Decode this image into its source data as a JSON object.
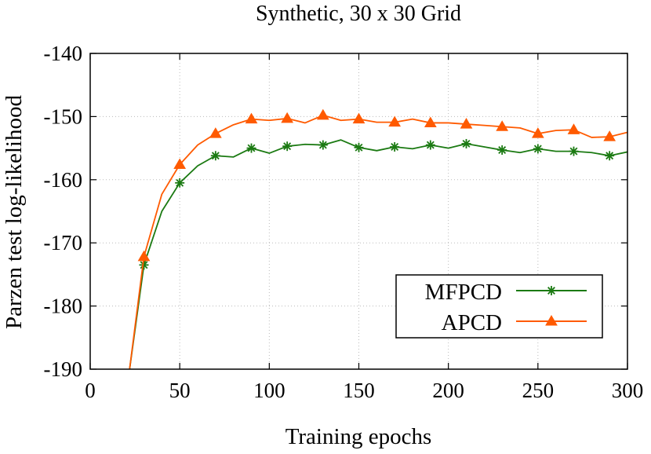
{
  "chart_data": {
    "type": "line",
    "title": "Synthetic, 30 x 30 Grid",
    "xlabel": "Training epochs",
    "ylabel": "Parzen test log-likelihood",
    "xlim": [
      0,
      300
    ],
    "ylim": [
      -190,
      -140
    ],
    "xticks": [
      0,
      50,
      100,
      150,
      200,
      250,
      300
    ],
    "yticks": [
      -190,
      -180,
      -170,
      -160,
      -150,
      -140
    ],
    "grid": true,
    "legend_position": "lower-right",
    "series": [
      {
        "name": "MFPCD",
        "color": "#1b7a12",
        "marker": "star",
        "x": [
          22,
          30,
          40,
          50,
          60,
          70,
          80,
          90,
          100,
          110,
          120,
          130,
          140,
          150,
          160,
          170,
          180,
          190,
          200,
          210,
          220,
          230,
          240,
          250,
          260,
          270,
          280,
          290,
          300
        ],
        "y": [
          -190,
          -173.5,
          -165,
          -160.5,
          -157.8,
          -156.2,
          -156.4,
          -155,
          -155.8,
          -154.7,
          -154.4,
          -154.5,
          -153.7,
          -154.9,
          -155.4,
          -154.8,
          -155.1,
          -154.5,
          -155.0,
          -154.3,
          -154.8,
          -155.3,
          -155.7,
          -155.1,
          -155.5,
          -155.5,
          -155.7,
          -156.2,
          -155.6
        ],
        "marker_x": [
          30,
          50,
          70,
          90,
          110,
          130,
          150,
          170,
          190,
          210,
          230,
          250,
          270,
          290
        ]
      },
      {
        "name": "APCD",
        "color": "#ff5a00",
        "marker": "triangle",
        "x": [
          22,
          30,
          40,
          50,
          60,
          70,
          80,
          90,
          100,
          110,
          120,
          130,
          140,
          150,
          160,
          170,
          180,
          190,
          200,
          210,
          220,
          230,
          240,
          250,
          260,
          270,
          280,
          290,
          300
        ],
        "y": [
          -190,
          -172.2,
          -162.3,
          -157.6,
          -154.5,
          -152.7,
          -151.3,
          -150.4,
          -150.6,
          -150.3,
          -151.0,
          -149.8,
          -150.6,
          -150.4,
          -150.9,
          -150.9,
          -150.4,
          -151.0,
          -151.0,
          -151.2,
          -151.4,
          -151.6,
          -151.8,
          -152.7,
          -152.2,
          -152.1,
          -153.3,
          -153.2,
          -152.5
        ],
        "marker_x": [
          30,
          50,
          70,
          90,
          110,
          130,
          150,
          170,
          190,
          210,
          230,
          250,
          270,
          290
        ]
      }
    ]
  }
}
